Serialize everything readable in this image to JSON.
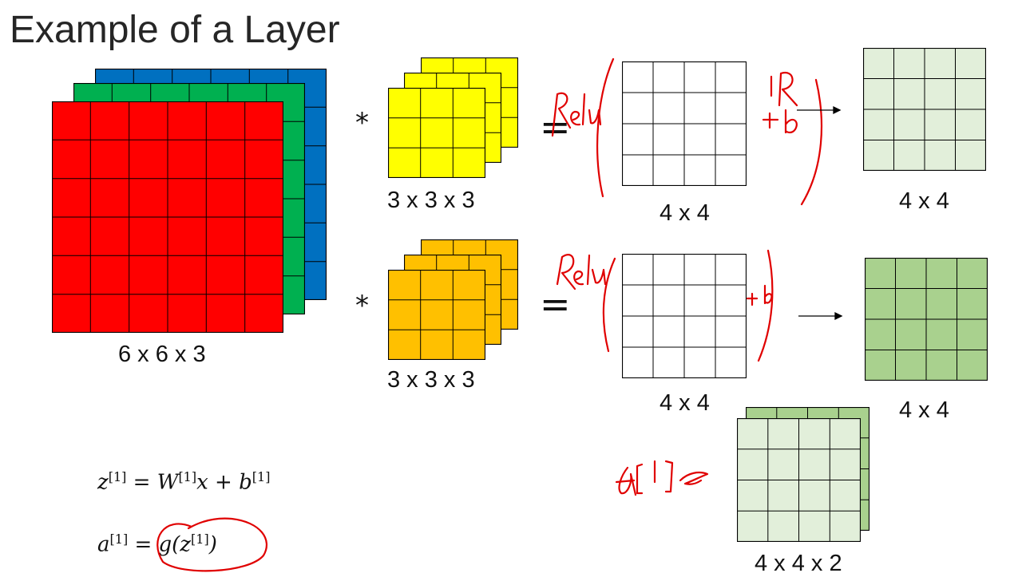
{
  "slide": {
    "title": "Example of a Layer"
  },
  "colors": {
    "input_red": "#ff0000",
    "input_green": "#00b050",
    "input_blue": "#0070c0",
    "filter1": "#ffff00",
    "filter2": "#ffc000",
    "output_light": "#e2efda",
    "output_dark": "#a9d18e",
    "handwriting": "#e00000",
    "grid_line": "#000000"
  },
  "input_volume": {
    "label": "6 x 6 x 3",
    "rows": 6,
    "cols": 6,
    "channels": [
      "red",
      "green",
      "blue"
    ]
  },
  "filters": [
    {
      "label": "3 x 3 x 3",
      "color": "yellow"
    },
    {
      "label": "3 x 3 x 3",
      "color": "orange"
    }
  ],
  "operators": {
    "convolve": "*",
    "equals": "="
  },
  "conv_outputs": [
    {
      "label": "4 x 4"
    },
    {
      "label": "4 x 4"
    }
  ],
  "activated_outputs": [
    {
      "label": "4 x 4"
    },
    {
      "label": "4 x 4"
    }
  ],
  "stacked_output": {
    "label": "4 x 4 x 2"
  },
  "equations": {
    "z": {
      "lhs": "z",
      "sup": "[1]",
      "eq": "=",
      "w": "W",
      "w_sup": "[1]",
      "x": "x",
      "plus": "+",
      "b": "b",
      "b_sup": "[1]"
    },
    "a": {
      "lhs": "a",
      "sup": "[1]",
      "eq": "=",
      "g": "g(z",
      "g_sup": "[1]",
      "close": ")"
    }
  },
  "annotations": {
    "relu_1": "Relu",
    "relu_2": "Relu",
    "r_plus_b": "ℝ + b",
    "plus_b": "+b",
    "a1": "a[1]"
  }
}
